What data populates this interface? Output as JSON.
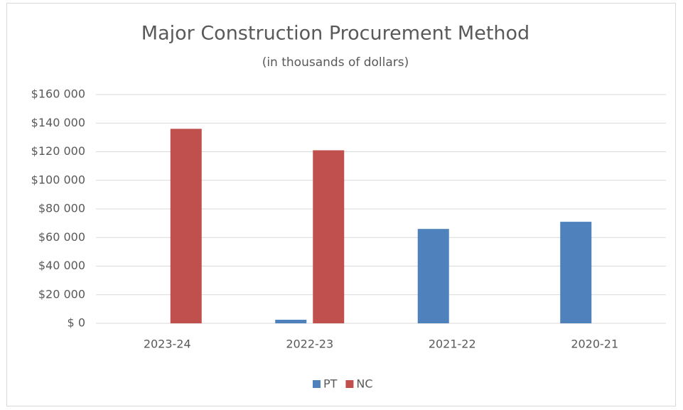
{
  "chart_data": {
    "type": "bar",
    "title": "Major Construction Procurement Method",
    "subtitle": "(in thousands of dollars)",
    "categories": [
      "2023-24",
      "2022-23",
      "2021-22",
      "2020-21"
    ],
    "series": [
      {
        "name": "PT",
        "color": "#4f81bd",
        "values": [
          0,
          2500,
          66000,
          71000
        ]
      },
      {
        "name": "NC",
        "color": "#c0504d",
        "values": [
          136000,
          121000,
          0,
          0
        ]
      }
    ],
    "ylim": [
      0,
      160000
    ],
    "yticks": [
      {
        "value": 0,
        "label": "$ 0"
      },
      {
        "value": 20000,
        "label": "$20 000"
      },
      {
        "value": 40000,
        "label": "$40 000"
      },
      {
        "value": 60000,
        "label": "$60 000"
      },
      {
        "value": 80000,
        "label": "$80 000"
      },
      {
        "value": 100000,
        "label": "$100 000"
      },
      {
        "value": 120000,
        "label": "$120 000"
      },
      {
        "value": 140000,
        "label": "$140 000"
      },
      {
        "value": 160000,
        "label": "$160 000"
      }
    ],
    "grid": true,
    "legend": "bottom"
  }
}
